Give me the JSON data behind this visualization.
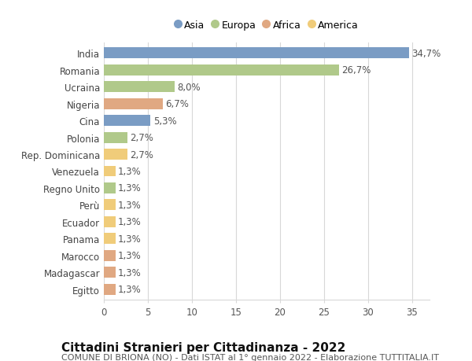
{
  "countries": [
    "India",
    "Romania",
    "Ucraina",
    "Nigeria",
    "Cina",
    "Polonia",
    "Rep. Dominicana",
    "Venezuela",
    "Regno Unito",
    "Perù",
    "Ecuador",
    "Panama",
    "Marocco",
    "Madagascar",
    "Egitto"
  ],
  "values": [
    34.7,
    26.7,
    8.0,
    6.7,
    5.3,
    2.7,
    2.7,
    1.3,
    1.3,
    1.3,
    1.3,
    1.3,
    1.3,
    1.3,
    1.3
  ],
  "labels": [
    "34,7%",
    "26,7%",
    "8,0%",
    "6,7%",
    "5,3%",
    "2,7%",
    "2,7%",
    "1,3%",
    "1,3%",
    "1,3%",
    "1,3%",
    "1,3%",
    "1,3%",
    "1,3%",
    "1,3%"
  ],
  "continents": [
    "Asia",
    "Europa",
    "Europa",
    "Africa",
    "Asia",
    "Europa",
    "America",
    "America",
    "Europa",
    "America",
    "America",
    "America",
    "Africa",
    "Africa",
    "Africa"
  ],
  "continent_colors": {
    "Asia": "#7a9cc4",
    "Europa": "#b0c98a",
    "Africa": "#e0a882",
    "America": "#f0cc7a"
  },
  "legend_entries": [
    "Asia",
    "Europa",
    "Africa",
    "America"
  ],
  "legend_colors": [
    "#7a9cc4",
    "#b0c98a",
    "#e0a882",
    "#f0cc7a"
  ],
  "title": "Cittadini Stranieri per Cittadinanza - 2022",
  "subtitle": "COMUNE DI BRIONA (NO) - Dati ISTAT al 1° gennaio 2022 - Elaborazione TUTTITALIA.IT",
  "xlim": [
    0,
    37
  ],
  "xticks": [
    0,
    5,
    10,
    15,
    20,
    25,
    30,
    35
  ],
  "background_color": "#ffffff",
  "grid_color": "#d8d8d8",
  "bar_height": 0.65,
  "label_fontsize": 8.5,
  "tick_fontsize": 8.5,
  "title_fontsize": 11,
  "subtitle_fontsize": 8
}
